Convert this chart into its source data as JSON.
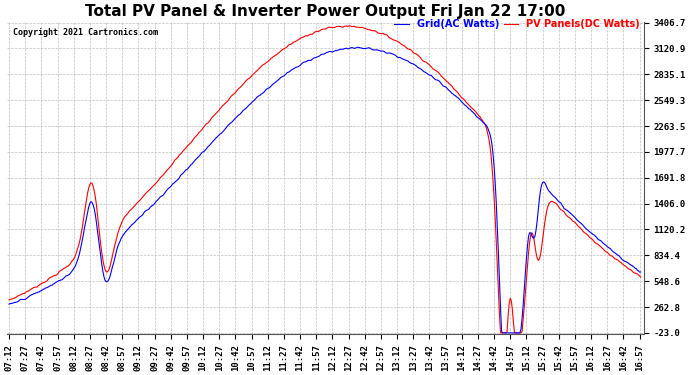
{
  "title": "Total PV Panel & Inverter Power Output Fri Jan 22 17:00",
  "copyright": "Copyright 2021 Cartronics.com",
  "legend_grid": "Grid(AC Watts)",
  "legend_pv": "PV Panels(DC Watts)",
  "color_grid": "blue",
  "color_pv": "red",
  "yticks": [
    3406.7,
    3120.9,
    2835.1,
    2549.3,
    2263.5,
    1977.7,
    1691.8,
    1406.0,
    1120.2,
    834.4,
    548.6,
    262.8,
    -23.0
  ],
  "ymin": -23.0,
  "ymax": 3406.7,
  "background_color": "#ffffff",
  "grid_color": "#b0b0b0",
  "title_fontsize": 11,
  "tick_fontsize": 6.5,
  "lw": 0.8
}
